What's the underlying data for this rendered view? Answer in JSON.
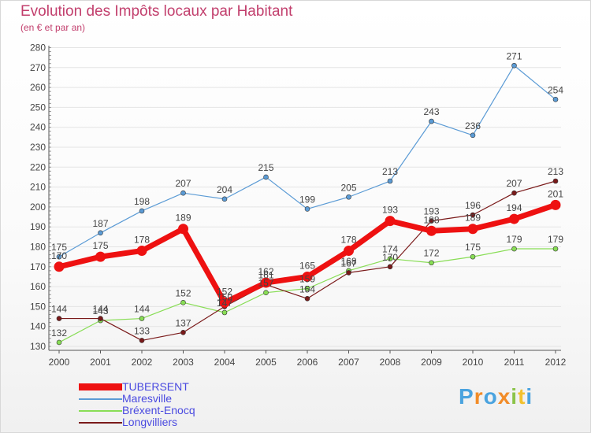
{
  "title": "Evolution des Impôts locaux par Habitant",
  "subtitle": "(en € et par an)",
  "brand": {
    "letters": [
      "P",
      "r",
      "o",
      "x",
      "i",
      "t",
      "i"
    ],
    "colors": [
      "#4aa3df",
      "#f28c28",
      "#4aa3df",
      "#f28c28",
      "#8bc34a",
      "#f2c12e",
      "#4aa3df"
    ]
  },
  "colors": {
    "TUBERSENT": "#ee1111",
    "Maresville": "#5b9bd5",
    "Bréxent-Enocq": "#88dd55",
    "Longvilliers": "#7a1a1a",
    "axis": "#555555",
    "grid": "#e4e4e4",
    "label": "#444444"
  },
  "chart_data": {
    "type": "line",
    "title": "Evolution des Impôts locaux par Habitant",
    "subtitle": "(en € et par an)",
    "xlabel": "",
    "ylabel": "",
    "x": [
      "2000",
      "2001",
      "2002",
      "2003",
      "2004",
      "2005",
      "2006",
      "2007",
      "2008",
      "2009",
      "2010",
      "2011",
      "2012"
    ],
    "ylim": [
      130,
      280
    ],
    "yticks": [
      "130",
      "140",
      "150",
      "160",
      "170",
      "180",
      "190",
      "200",
      "210",
      "220",
      "230",
      "240",
      "250",
      "260",
      "270",
      "280"
    ],
    "grid": true,
    "legend": "bottom-left",
    "series": [
      {
        "name": "Maresville",
        "values": [
          175,
          187,
          198,
          207,
          204,
          215,
          199,
          205,
          213,
          243,
          236,
          271,
          254
        ]
      },
      {
        "name": "Bréxent-Enocq",
        "values": [
          132,
          143,
          144,
          152,
          147,
          157,
          159,
          168,
          174,
          172,
          175,
          179,
          179
        ]
      },
      {
        "name": "Longvilliers",
        "values": [
          144,
          144,
          133,
          137,
          150,
          161,
          154,
          167,
          170,
          193,
          196,
          207,
          213
        ]
      },
      {
        "name": "TUBERSENT",
        "values": [
          170,
          175,
          178,
          189,
          152,
          162,
          165,
          178,
          193,
          188,
          189,
          194,
          201
        ]
      }
    ],
    "labels": {
      "Maresville": [
        "175",
        "187",
        "198",
        "207",
        "204",
        "215",
        "199",
        "205",
        "213",
        "243",
        "236",
        "271",
        "254"
      ],
      "Bréxent-Enocq": [
        "132",
        "143",
        "144",
        "152",
        "147",
        "157",
        "159",
        "168",
        "174",
        "172",
        "175",
        "179",
        "179"
      ],
      "Longvilliers": [
        "144",
        "144",
        "133",
        "137",
        "150",
        "161",
        "154",
        "167",
        "170",
        "193",
        "196",
        "207",
        "213"
      ],
      "TUBERSENT": [
        "170",
        "175",
        "178",
        "189",
        "152",
        "162",
        "165",
        "178",
        "193",
        "188",
        "189",
        "194",
        "201"
      ]
    }
  },
  "legend_items": [
    {
      "name": "TUBERSENT",
      "label": "TUBERSENT"
    },
    {
      "name": "Maresville",
      "label": "Maresville"
    },
    {
      "name": "Bréxent-Enocq",
      "label": "Bréxent-Enocq"
    },
    {
      "name": "Longvilliers",
      "label": "Longvilliers"
    }
  ]
}
